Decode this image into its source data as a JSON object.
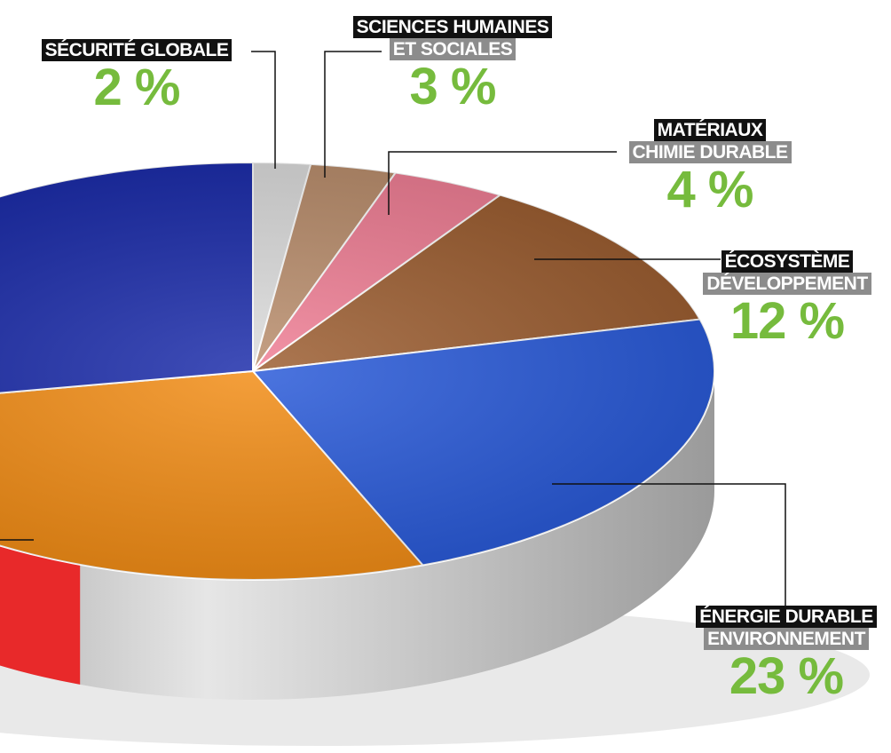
{
  "chart_data": {
    "type": "pie",
    "title": "",
    "slices": [
      {
        "line1": "SÉCURITÉ GLOBALE",
        "line2": "",
        "value": 2,
        "value_label": "2 %",
        "color": "#dcdcdc"
      },
      {
        "line1": "SCIENCES HUMAINES",
        "line2": "ET SOCIALES",
        "value": 3,
        "value_label": "3 %",
        "color": "#b98c6a"
      },
      {
        "line1": "MATÉRIAUX",
        "line2": "CHIMIE DURABLE",
        "value": 4,
        "value_label": "4 %",
        "color": "#f07c93"
      },
      {
        "line1": "ÉCOSYSTÈME",
        "line2": "DÉVELOPPEMENT",
        "value": 12,
        "value_label": "12 %",
        "color": "#9a5a2c"
      },
      {
        "line1": "ÉNERGIE DURABLE",
        "line2": "ENVIRONNEMENT",
        "value": 23,
        "value_label": "23 %",
        "color": "#2456d8"
      }
    ],
    "unlabeled_visible_slices": [
      {
        "color": "#f28a10"
      },
      {
        "color": "#1627a8"
      }
    ],
    "colors": {
      "label_dark": "#111111",
      "label_grey": "#8c8c8c",
      "percent": "#76bb3d",
      "rim": "#c8c8c8",
      "rim_accent": "#e8292a"
    }
  }
}
